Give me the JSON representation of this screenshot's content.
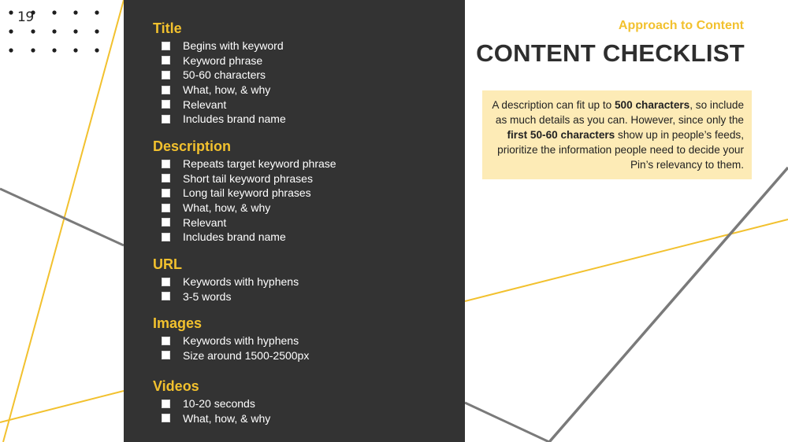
{
  "slide": {
    "page_number": "19",
    "eyebrow": "Approach to Content",
    "title": "CONTENT CHECKLIST"
  },
  "checklist": [
    {
      "title": "Title",
      "items": [
        "Begins with keyword",
        "Keyword phrase",
        "50-60 characters",
        "What, how, & why",
        "Relevant",
        "Includes brand name"
      ]
    },
    {
      "title": "Description",
      "items": [
        "Repeats target keyword phrase",
        "Short tail keyword phrases",
        "Long tail keyword phrases",
        "What, how, & why",
        "Relevant",
        "Includes brand name"
      ]
    },
    {
      "title": "URL",
      "items": [
        "Keywords with hyphens",
        "3-5 words"
      ]
    },
    {
      "title": "Images",
      "items": [
        "Keywords with hyphens",
        "Size around 1500-2500px"
      ]
    },
    {
      "title": "Videos",
      "items": [
        "10-20 seconds",
        "What, how, & why"
      ]
    }
  ],
  "note": {
    "part1": "A description can fit up to ",
    "bold1": "500 characters",
    "part2": ", so include as much details as you can. However, since only the ",
    "bold2": "first 50-60 characters",
    "part3": " show up in people’s feeds, prioritize the information people need to decide your Pin’s relevancy to them."
  },
  "colors": {
    "accent": "#f2c12e",
    "panel": "#333333",
    "note_bg": "#fdebb6",
    "line_gray": "#7a7a7a"
  },
  "icons": [
    "checkbox-icon",
    "dot-grid-icon"
  ]
}
